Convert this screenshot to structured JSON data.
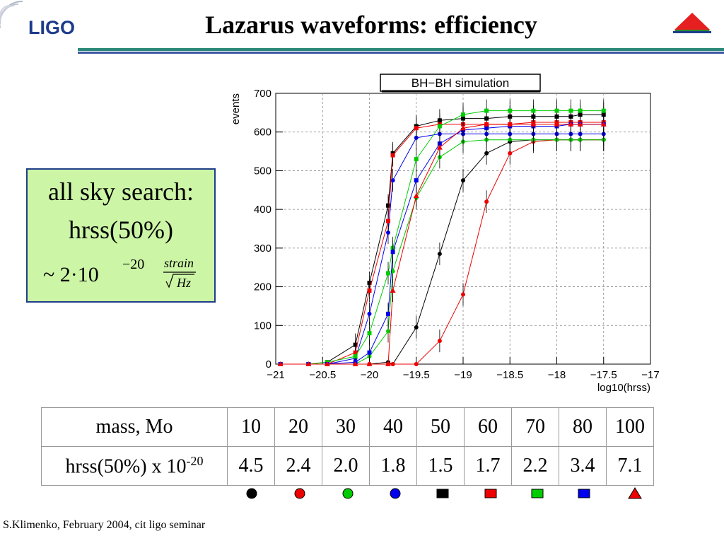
{
  "slide": {
    "title": "Lazarus waveforms: efficiency",
    "logo_text": "LIGO",
    "footer": "S.Klimenko, February 2004, cit ligo seminar"
  },
  "callout": {
    "line1": "all sky search:",
    "line2": "hrss(50%)",
    "approx": "~ 2·10",
    "exponent": "−20",
    "frac_num": "strain",
    "frac_den": "Hz"
  },
  "table": {
    "row1_label": "mass, Mo",
    "row2_label": "hrss(50%) x 10",
    "row2_exp": "-20",
    "masses": [
      "10",
      "20",
      "30",
      "40",
      "50",
      "60",
      "70",
      "80",
      "100"
    ],
    "hrss": [
      "4.5",
      "2.4",
      "2.0",
      "1.8",
      "1.5",
      "1.7",
      "2.2",
      "3.4",
      "7.1"
    ]
  },
  "legend_markers": [
    {
      "shape": "circle",
      "color": "#000000"
    },
    {
      "shape": "circle",
      "color": "#ee0000"
    },
    {
      "shape": "circle",
      "color": "#00cc00"
    },
    {
      "shape": "circle",
      "color": "#0000ee"
    },
    {
      "shape": "square",
      "color": "#000000"
    },
    {
      "shape": "square",
      "color": "#ee0000"
    },
    {
      "shape": "square",
      "color": "#00cc00"
    },
    {
      "shape": "square",
      "color": "#0000ee"
    },
    {
      "shape": "triangle",
      "color": "#ee0000"
    }
  ],
  "chart_data": {
    "type": "scatter",
    "title": "BH−BH simulation",
    "xlabel": "log10(hrss)",
    "ylabel": "events",
    "xlim": [
      -21,
      -17
    ],
    "ylim": [
      0,
      700
    ],
    "xticks": [
      "−21",
      "−20.5",
      "−20",
      "−19.5",
      "−19",
      "−18.5",
      "−18",
      "−17.5",
      "−17"
    ],
    "yticks": [
      "0",
      "100",
      "200",
      "300",
      "400",
      "500",
      "600",
      "700"
    ],
    "grid": true,
    "x": [
      -20.95,
      -20.65,
      -20.45,
      -20.15,
      -20.0,
      -19.8,
      -19.75,
      -19.5,
      -19.25,
      -19.0,
      -18.75,
      -18.5,
      -18.25,
      -18.0,
      -17.85,
      -17.75,
      -17.5
    ],
    "series": [
      {
        "marker": "circle",
        "color": "#000000",
        "values": [
          0,
          0,
          0,
          0,
          0,
          5,
          0,
          95,
          285,
          475,
          545,
          575,
          580,
          580,
          580,
          580,
          580
        ]
      },
      {
        "marker": "circle",
        "color": "#ee0000",
        "values": [
          0,
          0,
          0,
          0,
          0,
          0,
          0,
          0,
          60,
          180,
          420,
          545,
          575,
          580,
          580,
          580,
          580
        ]
      },
      {
        "marker": "circle",
        "color": "#00cc00",
        "values": [
          0,
          0,
          0,
          0,
          20,
          85,
          240,
          430,
          535,
          575,
          580,
          580,
          580,
          580,
          580,
          580,
          580
        ]
      },
      {
        "marker": "circle",
        "color": "#0000ee",
        "values": [
          0,
          0,
          0,
          15,
          130,
          340,
          475,
          585,
          595,
          595,
          595,
          595,
          595,
          595,
          595,
          595,
          595
        ]
      },
      {
        "marker": "square",
        "color": "#000000",
        "values": [
          0,
          0,
          5,
          50,
          210,
          410,
          545,
          615,
          630,
          635,
          635,
          640,
          640,
          640,
          640,
          645,
          645
        ]
      },
      {
        "marker": "square",
        "color": "#ee0000",
        "values": [
          0,
          0,
          0,
          30,
          190,
          370,
          540,
          610,
          620,
          620,
          620,
          620,
          625,
          625,
          625,
          625,
          625
        ]
      },
      {
        "marker": "square",
        "color": "#00cc00",
        "values": [
          0,
          0,
          5,
          20,
          80,
          235,
          300,
          530,
          615,
          645,
          655,
          655,
          655,
          655,
          655,
          655,
          655
        ]
      },
      {
        "marker": "square",
        "color": "#0000ee",
        "values": [
          0,
          0,
          0,
          5,
          30,
          130,
          290,
          475,
          570,
          605,
          610,
          615,
          615,
          615,
          620,
          620,
          620
        ]
      },
      {
        "marker": "triangle",
        "color": "#ee0000",
        "values": [
          0,
          0,
          0,
          0,
          0,
          0,
          190,
          435,
          560,
          610,
          620,
          620,
          620,
          620,
          620,
          620,
          620
        ]
      }
    ]
  }
}
